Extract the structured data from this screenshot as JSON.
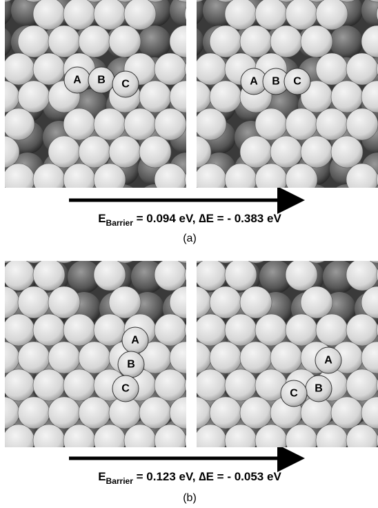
{
  "panels": [
    {
      "images": [
        {
          "labels": [
            "A",
            "B",
            "C"
          ]
        },
        {
          "labels": [
            "A",
            "B",
            "C"
          ]
        }
      ],
      "equation": {
        "symbol": "E",
        "subscript": "Barrier",
        "rest": " = 0.094 eV, ∆E = - 0.383 eV"
      },
      "caption": "(a)"
    },
    {
      "images": [
        {
          "labels": [
            "A",
            "B",
            "C"
          ]
        },
        {
          "labels": [
            "A",
            "B",
            "C"
          ]
        }
      ],
      "equation": {
        "symbol": "E",
        "subscript": "Barrier",
        "rest": " = 0.123 eV, ∆E = - 0.053 eV"
      },
      "caption": "(b)"
    }
  ]
}
